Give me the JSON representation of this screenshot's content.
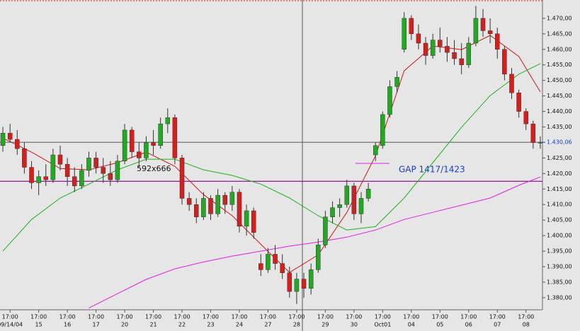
{
  "chart_data": {
    "type": "candlestick",
    "up_color": "#22a822",
    "down_color": "#d02020",
    "wick_color": "#333333",
    "open": [
      1.429,
      1.433,
      1.431,
      1.428,
      1.422,
      1.417,
      1.419,
      1.418,
      1.426,
      1.423,
      1.419,
      1.416,
      1.421,
      1.425,
      1.422,
      1.42,
      1.418,
      1.424,
      1.434,
      1.427,
      1.425,
      1.43,
      1.429,
      1.436,
      1.438,
      1.425,
      1.412,
      1.41,
      1.406,
      1.412,
      1.407,
      1.413,
      1.41,
      1.414,
      1.403,
      1.408,
      1.391,
      1.389,
      1.394,
      1.391,
      1.388,
      1.382,
      1.386,
      1.383,
      1.389,
      1.397,
      1.406,
      1.409,
      1.41,
      1.416,
      1.407,
      1.412,
      1.426,
      1.429,
      1.439,
      1.448,
      1.46,
      1.47,
      1.465,
      1.462,
      1.458,
      1.463,
      1.461,
      1.459,
      1.457,
      1.455,
      1.462,
      1.47,
      1.466,
      1.465,
      1.46,
      1.452,
      1.446,
      1.44,
      1.436,
      1.43
    ],
    "high": [
      1.435,
      1.436,
      1.434,
      1.43,
      1.424,
      1.421,
      1.423,
      1.428,
      1.429,
      1.425,
      1.422,
      1.423,
      1.427,
      1.427,
      1.425,
      1.424,
      1.426,
      1.436,
      1.435,
      1.43,
      1.432,
      1.434,
      1.438,
      1.441,
      1.439,
      1.426,
      1.414,
      1.412,
      1.414,
      1.413,
      1.415,
      1.414,
      1.416,
      1.415,
      1.41,
      1.409,
      1.394,
      1.396,
      1.397,
      1.394,
      1.39,
      1.388,
      1.388,
      1.391,
      1.399,
      1.408,
      1.411,
      1.412,
      1.418,
      1.417,
      1.414,
      1.417,
      1.43,
      1.44,
      1.45,
      1.453,
      1.472,
      1.471,
      1.468,
      1.464,
      1.465,
      1.467,
      1.464,
      1.463,
      1.462,
      1.464,
      1.474,
      1.473,
      1.47,
      1.467,
      1.461,
      1.454,
      1.447,
      1.441,
      1.437,
      1.432
    ],
    "low": [
      1.427,
      1.43,
      1.426,
      1.42,
      1.415,
      1.413,
      1.416,
      1.417,
      1.421,
      1.416,
      1.414,
      1.415,
      1.419,
      1.42,
      1.417,
      1.416,
      1.417,
      1.423,
      1.425,
      1.422,
      1.424,
      1.426,
      1.428,
      1.433,
      1.423,
      1.41,
      1.408,
      1.404,
      1.405,
      1.405,
      1.406,
      1.407,
      1.408,
      1.401,
      1.4,
      1.399,
      1.387,
      1.388,
      1.389,
      1.386,
      1.38,
      1.378,
      1.38,
      1.381,
      1.388,
      1.396,
      1.404,
      1.406,
      1.409,
      1.405,
      1.404,
      1.411,
      1.424,
      1.428,
      1.438,
      1.446,
      1.459,
      1.463,
      1.46,
      1.455,
      1.457,
      1.459,
      1.456,
      1.455,
      1.452,
      1.454,
      1.461,
      1.464,
      1.462,
      1.457,
      1.45,
      1.444,
      1.438,
      1.434,
      1.428,
      1.428
    ],
    "close": [
      1.433,
      1.431,
      1.428,
      1.422,
      1.417,
      1.419,
      1.418,
      1.426,
      1.423,
      1.419,
      1.416,
      1.421,
      1.425,
      1.422,
      1.42,
      1.418,
      1.424,
      1.434,
      1.427,
      1.425,
      1.43,
      1.429,
      1.436,
      1.438,
      1.425,
      1.412,
      1.41,
      1.406,
      1.412,
      1.407,
      1.413,
      1.41,
      1.414,
      1.403,
      1.408,
      1.401,
      1.389,
      1.394,
      1.391,
      1.388,
      1.382,
      1.386,
      1.383,
      1.389,
      1.397,
      1.406,
      1.409,
      1.41,
      1.416,
      1.407,
      1.412,
      1.415,
      1.429,
      1.439,
      1.448,
      1.451,
      1.47,
      1.465,
      1.462,
      1.458,
      1.463,
      1.461,
      1.459,
      1.457,
      1.455,
      1.462,
      1.47,
      1.466,
      1.465,
      1.46,
      1.452,
      1.446,
      1.44,
      1.436,
      1.43,
      1.43
    ],
    "overlays": [
      {
        "color": "#d01818",
        "x": [
          0,
          4,
          8,
          12,
          16,
          20,
          24,
          28,
          32,
          36,
          40,
          44,
          48,
          52,
          56,
          60,
          64,
          68,
          72,
          75
        ],
        "values": [
          1.4314,
          1.4269,
          1.4216,
          1.4212,
          1.4235,
          1.4269,
          1.4223,
          1.4132,
          1.4064,
          1.3972,
          1.3881,
          1.3938,
          1.4075,
          1.4257,
          1.4531,
          1.4611,
          1.4599,
          1.4645,
          1.4577,
          1.4463
        ]
      },
      {
        "color": "#20b020",
        "x": [
          0,
          4,
          8,
          12,
          16,
          20,
          24,
          28,
          32,
          36,
          40,
          44,
          48,
          52,
          56,
          60,
          64,
          68,
          72,
          75
        ],
        "values": [
          1.395,
          1.4052,
          1.4121,
          1.4166,
          1.4212,
          1.4246,
          1.4246,
          1.4212,
          1.4194,
          1.4166,
          1.4121,
          1.4064,
          1.4018,
          1.4029,
          1.4121,
          1.4235,
          1.4349,
          1.4451,
          1.452,
          1.4554
        ]
      },
      {
        "color": "#e020e0",
        "x": [
          0,
          4,
          8,
          12,
          16,
          20,
          24,
          28,
          32,
          36,
          40,
          44,
          48,
          52,
          56,
          60,
          64,
          68,
          72,
          75
        ],
        "values": [
          null,
          null,
          null,
          1.3767,
          1.3813,
          1.3859,
          1.3893,
          1.3915,
          1.3934,
          1.395,
          1.3966,
          1.3979,
          1.3995,
          1.4018,
          1.4052,
          1.4075,
          1.4098,
          1.4121,
          1.4162,
          1.4189
        ]
      }
    ],
    "hlines": [
      {
        "value": 1.43006,
        "color": "#666666"
      },
      {
        "value": 1.4175,
        "color": "#8a008a"
      }
    ],
    "price_marker": {
      "value": 1.43006,
      "label": "1.430,06"
    },
    "marker_color": "#1a3cc8",
    "annotations": [
      "592x666",
      "GAP 1417/1423"
    ],
    "xlim": [
      -0.4,
      75.3
    ],
    "ylim": [
      1.3761,
      1.4759
    ],
    "xticks": [
      {
        "value": 1,
        "label": "17:00"
      },
      {
        "value": 5,
        "label": "17:00"
      },
      {
        "value": 9,
        "label": "17:00"
      },
      {
        "value": 13,
        "label": "17:00"
      },
      {
        "value": 17,
        "label": "17:00"
      },
      {
        "value": 21,
        "label": "17:00"
      },
      {
        "value": 25,
        "label": "17:00"
      },
      {
        "value": 29,
        "label": "17:00"
      },
      {
        "value": 33,
        "label": "17:00"
      },
      {
        "value": 37,
        "label": "17:00"
      },
      {
        "value": 41,
        "label": "17:00"
      },
      {
        "value": 45,
        "label": "17:00"
      },
      {
        "value": 49,
        "label": "17:00"
      },
      {
        "value": 53,
        "label": "17:00"
      },
      {
        "value": 57,
        "label": "17:00"
      },
      {
        "value": 61,
        "label": "17:00"
      },
      {
        "value": 65,
        "label": "17:00"
      },
      {
        "value": 69,
        "label": "17:00"
      },
      {
        "value": 73,
        "label": "17:00"
      }
    ],
    "xtick_dates": [
      "09/14/04",
      "15",
      "16",
      "17",
      "20",
      "21",
      "22",
      "23",
      "24",
      "27",
      "28",
      "29",
      "30",
      "Oct01",
      "04",
      "05",
      "06",
      "07",
      "08"
    ],
    "yticks": [
      {
        "value": 1.38,
        "label": "1.380,00"
      },
      {
        "value": 1.385,
        "label": "1.385,00"
      },
      {
        "value": 1.39,
        "label": "1.390,00"
      },
      {
        "value": 1.395,
        "label": "1.395,00"
      },
      {
        "value": 1.4,
        "label": "1.400,00"
      },
      {
        "value": 1.405,
        "label": "1.405,00"
      },
      {
        "value": 1.41,
        "label": "1.410,00"
      },
      {
        "value": 1.415,
        "label": "1.415,00"
      },
      {
        "value": 1.42,
        "label": "1.420,00"
      },
      {
        "value": 1.425,
        "label": "1.425,00"
      },
      {
        "value": 1.435,
        "label": "1.435,00"
      },
      {
        "value": 1.44,
        "label": "1.440,00"
      },
      {
        "value": 1.445,
        "label": "1.445,00"
      },
      {
        "value": 1.45,
        "label": "1.450,00"
      },
      {
        "value": 1.455,
        "label": "1.455,00"
      },
      {
        "value": 1.46,
        "label": "1.460,00"
      },
      {
        "value": 1.465,
        "label": "1.465,00"
      },
      {
        "value": 1.47,
        "label": "1.470,00"
      }
    ]
  }
}
